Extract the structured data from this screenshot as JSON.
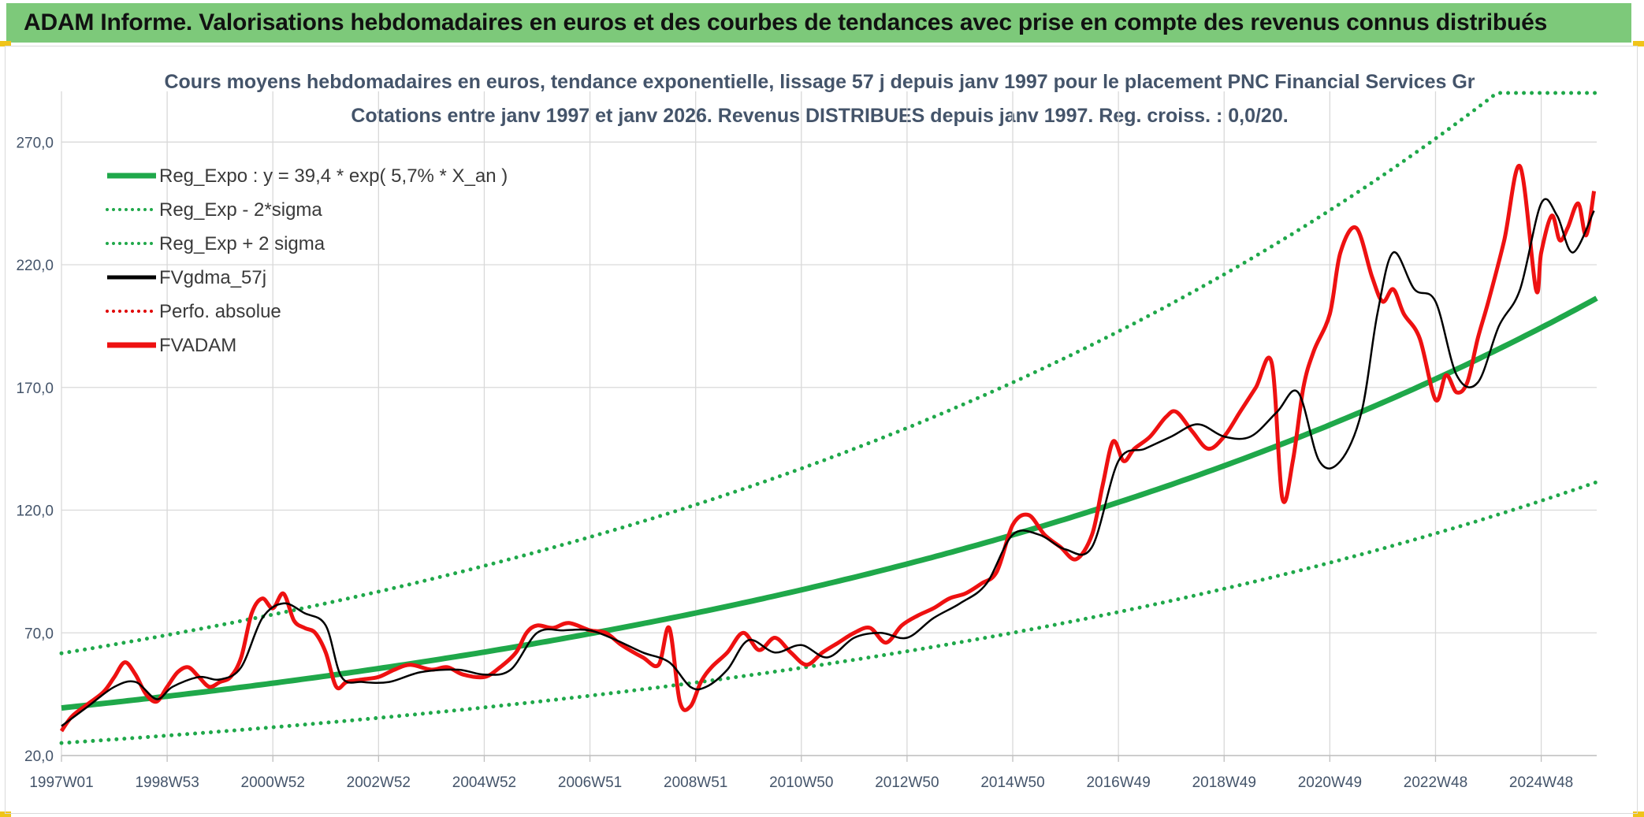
{
  "banner": {
    "title": "ADAM Informe. Valorisations hebdomadaires en euros et des courbes de tendances avec prise en compte des revenus connus distribués"
  },
  "colors": {
    "banner_bg": "#7dc97a",
    "reg_expo": "#1fa84a",
    "sigma": "#1fa84a",
    "fvgdma": "#000000",
    "perfo": "#e00000",
    "fvadam": "#ee1111",
    "grid": "#d9d9d9",
    "axis_text": "#44546a"
  },
  "chart_data": {
    "type": "line",
    "title": "Cours moyens hebdomadaires en euros, tendance exponentielle, lissage 57 j depuis janv 1997 pour le placement PNC Financial Services Gr",
    "subtitle": "Cotations entre janv 1997 et janv 2026. Revenus DISTRIBUES depuis janv 1997. Reg. croiss. : 0,0/20.",
    "xlabel": "",
    "ylabel": "",
    "x_start_year": 1997.0,
    "x_end_year": 2026.05,
    "ylim": [
      20,
      290
    ],
    "y_ticks": [
      20,
      70,
      120,
      170,
      220,
      270
    ],
    "y_tick_labels": [
      "20,0",
      "70,0",
      "120,0",
      "170,0",
      "220,0",
      "270,0"
    ],
    "x_tick_labels": [
      "1997W01",
      "1998W53",
      "2000W52",
      "2002W52",
      "2004W52",
      "2006W51",
      "2008W51",
      "2010W50",
      "2012W50",
      "2014W50",
      "2016W49",
      "2018W49",
      "2020W49",
      "2022W48",
      "2024W48"
    ],
    "x_tick_years": [
      1997.0,
      1999.0,
      2001.0,
      2003.0,
      2005.0,
      2007.0,
      2009.0,
      2011.0,
      2013.0,
      2015.0,
      2017.0,
      2019.0,
      2021.0,
      2023.0,
      2025.0
    ],
    "legend_position": "top-left",
    "regression": {
      "a": 39.4,
      "rate": 0.057,
      "label": "Reg_Expo : y = 39,4 * exp( 5,7% *  X_an )",
      "sigma_factor_low": 0.637,
      "sigma_factor_high": 1.565,
      "cap": 290
    },
    "series": [
      {
        "name": "Reg_Expo : y = 39,4 * exp( 5,7% *  X_an )",
        "style": "solid-thick",
        "color": "#1fa84a"
      },
      {
        "name": "Reg_Exp - 2*sigma",
        "style": "dotted",
        "color": "#1fa84a"
      },
      {
        "name": "Reg_Exp + 2 sigma",
        "style": "dotted",
        "color": "#1fa84a"
      },
      {
        "name": "FVgdma_57j",
        "style": "solid",
        "color": "#000000",
        "x": [
          1997.0,
          1997.5,
          1998.0,
          1998.4,
          1998.8,
          1999.1,
          1999.6,
          2000.0,
          2000.4,
          2000.8,
          2001.2,
          2001.6,
          2002.0,
          2002.3,
          2002.7,
          2003.2,
          2003.8,
          2004.5,
          2005.0,
          2005.5,
          2006.0,
          2006.5,
          2007.0,
          2007.5,
          2008.0,
          2008.5,
          2008.9,
          2009.2,
          2009.6,
          2010.0,
          2010.5,
          2011.0,
          2011.5,
          2012.0,
          2012.5,
          2013.0,
          2013.5,
          2014.0,
          2014.5,
          2015.0,
          2015.5,
          2016.0,
          2016.5,
          2017.0,
          2017.5,
          2018.0,
          2018.5,
          2019.0,
          2019.5,
          2020.0,
          2020.4,
          2020.8,
          2021.2,
          2021.6,
          2021.9,
          2022.2,
          2022.6,
          2023.0,
          2023.4,
          2023.8,
          2024.2,
          2024.6,
          2025.0,
          2025.3,
          2025.6,
          2026.0
        ],
        "values": [
          32,
          40,
          48,
          50,
          43,
          48,
          52,
          51,
          56,
          76,
          82,
          78,
          73,
          52,
          50,
          50,
          54,
          55,
          53,
          55,
          70,
          71,
          71,
          67,
          62,
          58,
          48,
          48,
          55,
          67,
          62,
          65,
          60,
          68,
          70,
          68,
          76,
          82,
          90,
          110,
          110,
          104,
          105,
          140,
          145,
          150,
          155,
          150,
          150,
          160,
          168,
          140,
          140,
          160,
          200,
          225,
          210,
          205,
          175,
          172,
          195,
          210,
          245,
          240,
          225,
          242
        ]
      },
      {
        "name": "Perfo. absolue",
        "style": "dotted",
        "color": "#e00000"
      },
      {
        "name": "FVADAM",
        "style": "solid-thick",
        "color": "#ee1111",
        "x": [
          1997.0,
          1997.2,
          1997.5,
          1997.8,
          1998.0,
          1998.2,
          1998.4,
          1998.6,
          1998.8,
          1999.0,
          1999.2,
          1999.4,
          1999.6,
          1999.8,
          2000.0,
          2000.2,
          2000.4,
          2000.6,
          2000.8,
          2001.0,
          2001.2,
          2001.4,
          2001.6,
          2001.8,
          2002.0,
          2002.2,
          2002.4,
          2002.7,
          2003.0,
          2003.3,
          2003.6,
          2004.0,
          2004.3,
          2004.6,
          2005.0,
          2005.3,
          2005.6,
          2005.8,
          2006.0,
          2006.3,
          2006.6,
          2007.0,
          2007.3,
          2007.6,
          2008.0,
          2008.3,
          2008.5,
          2008.7,
          2008.9,
          2009.1,
          2009.3,
          2009.6,
          2009.9,
          2010.2,
          2010.5,
          2010.8,
          2011.1,
          2011.4,
          2011.7,
          2012.0,
          2012.3,
          2012.6,
          2012.9,
          2013.2,
          2013.5,
          2013.8,
          2014.1,
          2014.4,
          2014.7,
          2015.0,
          2015.3,
          2015.6,
          2015.9,
          2016.2,
          2016.5,
          2016.7,
          2016.9,
          2017.1,
          2017.3,
          2017.6,
          2017.9,
          2018.1,
          2018.4,
          2018.7,
          2019.0,
          2019.3,
          2019.6,
          2019.9,
          2020.1,
          2020.3,
          2020.5,
          2020.7,
          2021.0,
          2021.2,
          2021.5,
          2021.8,
          2022.0,
          2022.2,
          2022.4,
          2022.7,
          2023.0,
          2023.2,
          2023.4,
          2023.6,
          2023.8,
          2024.0,
          2024.3,
          2024.6,
          2024.9,
          2025.0,
          2025.2,
          2025.35,
          2025.5,
          2025.7,
          2025.85,
          2026.0
        ],
        "values": [
          30,
          36,
          41,
          46,
          52,
          58,
          53,
          45,
          42,
          48,
          54,
          56,
          52,
          48,
          50,
          52,
          60,
          78,
          84,
          80,
          86,
          75,
          72,
          70,
          62,
          48,
          50,
          51,
          52,
          55,
          57,
          55,
          56,
          53,
          52,
          56,
          62,
          70,
          73,
          72,
          74,
          71,
          70,
          65,
          60,
          57,
          72,
          42,
          40,
          50,
          56,
          62,
          70,
          63,
          68,
          62,
          57,
          62,
          66,
          70,
          72,
          66,
          73,
          77,
          80,
          84,
          86,
          90,
          95,
          114,
          118,
          110,
          105,
          100,
          110,
          130,
          148,
          140,
          145,
          150,
          158,
          160,
          152,
          145,
          150,
          160,
          170,
          180,
          125,
          140,
          170,
          185,
          200,
          225,
          235,
          215,
          205,
          210,
          200,
          190,
          165,
          175,
          168,
          172,
          190,
          205,
          230,
          260,
          210,
          225,
          240,
          230,
          235,
          245,
          232,
          250
        ]
      }
    ],
    "legend": [
      {
        "label": "Reg_Expo : y = 39,4 * exp( 5,7% *  X_an )",
        "color": "#1fa84a",
        "style": "solid-thick"
      },
      {
        "label": "Reg_Exp - 2*sigma",
        "color": "#1fa84a",
        "style": "dotted"
      },
      {
        "label": "Reg_Exp + 2 sigma",
        "color": "#1fa84a",
        "style": "dotted"
      },
      {
        "label": "FVgdma_57j",
        "color": "#000000",
        "style": "solid"
      },
      {
        "label": "Perfo. absolue",
        "color": "#e00000",
        "style": "dotted"
      },
      {
        "label": "FVADAM",
        "color": "#ee1111",
        "style": "solid-thick"
      }
    ]
  }
}
